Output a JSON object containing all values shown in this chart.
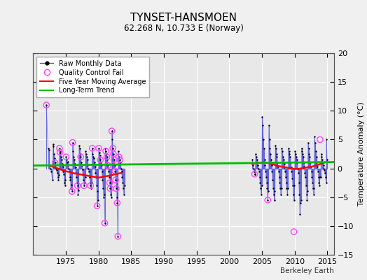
{
  "title": "TYNSET-HANSMOEN",
  "subtitle": "62.268 N, 10.733 E (Norway)",
  "ylabel": "Temperature Anomaly (°C)",
  "xlabel_credit": "Berkeley Earth",
  "xlim": [
    1970,
    2016
  ],
  "ylim": [
    -15,
    20
  ],
  "yticks": [
    -15,
    -10,
    -5,
    0,
    5,
    10,
    15,
    20
  ],
  "xticks": [
    1975,
    1980,
    1985,
    1990,
    1995,
    2000,
    2005,
    2010,
    2015
  ],
  "plot_bg_color": "#e8e8e8",
  "outer_bg_color": "#f0f0f0",
  "grid_color": "#ffffff",
  "raw_color": "#5555dd",
  "dot_color": "#000000",
  "moving_avg_color": "#ff0000",
  "trend_color": "#00bb00",
  "qc_fail_color": "#ff44ff",
  "data_gap_start": 1984.0,
  "data_gap_end": 2003.5,
  "raw_monthly": [
    [
      1972.04,
      11.0
    ],
    [
      1972.29,
      3.5
    ],
    [
      1972.46,
      3.2
    ],
    [
      1972.54,
      0.5
    ],
    [
      1972.62,
      0.0
    ],
    [
      1972.79,
      -0.5
    ],
    [
      1972.96,
      -2.0
    ],
    [
      1973.04,
      4.2
    ],
    [
      1973.12,
      3.8
    ],
    [
      1973.21,
      2.5
    ],
    [
      1973.29,
      1.8
    ],
    [
      1973.37,
      1.0
    ],
    [
      1973.46,
      0.5
    ],
    [
      1973.54,
      0.0
    ],
    [
      1973.62,
      -0.3
    ],
    [
      1973.71,
      -0.8
    ],
    [
      1973.79,
      -1.5
    ],
    [
      1973.87,
      -2.0
    ],
    [
      1973.96,
      -1.2
    ],
    [
      1974.04,
      3.5
    ],
    [
      1974.12,
      2.8
    ],
    [
      1974.21,
      3.0
    ],
    [
      1974.29,
      2.0
    ],
    [
      1974.37,
      1.5
    ],
    [
      1974.46,
      0.8
    ],
    [
      1974.54,
      0.3
    ],
    [
      1974.62,
      -0.5
    ],
    [
      1974.71,
      -1.0
    ],
    [
      1974.79,
      -2.5
    ],
    [
      1974.87,
      -3.0
    ],
    [
      1974.96,
      -2.0
    ],
    [
      1975.04,
      2.0
    ],
    [
      1975.12,
      1.5
    ],
    [
      1975.21,
      1.0
    ],
    [
      1975.29,
      1.2
    ],
    [
      1975.37,
      0.5
    ],
    [
      1975.46,
      0.0
    ],
    [
      1975.54,
      -0.5
    ],
    [
      1975.62,
      -1.5
    ],
    [
      1975.71,
      -2.0
    ],
    [
      1975.79,
      -3.5
    ],
    [
      1975.87,
      -2.8
    ],
    [
      1975.96,
      -4.0
    ],
    [
      1976.04,
      4.5
    ],
    [
      1976.12,
      3.0
    ],
    [
      1976.21,
      2.0
    ],
    [
      1976.29,
      1.5
    ],
    [
      1976.37,
      0.8
    ],
    [
      1976.46,
      0.2
    ],
    [
      1976.54,
      -0.8
    ],
    [
      1976.62,
      -1.5
    ],
    [
      1976.71,
      -2.5
    ],
    [
      1976.79,
      -3.0
    ],
    [
      1976.87,
      -4.5
    ],
    [
      1976.96,
      -3.8
    ],
    [
      1977.04,
      4.0
    ],
    [
      1977.12,
      3.5
    ],
    [
      1977.21,
      2.5
    ],
    [
      1977.29,
      2.0
    ],
    [
      1977.37,
      1.0
    ],
    [
      1977.46,
      0.5
    ],
    [
      1977.54,
      -0.2
    ],
    [
      1977.62,
      -1.0
    ],
    [
      1977.71,
      -2.0
    ],
    [
      1977.79,
      -3.0
    ],
    [
      1977.87,
      -2.5
    ],
    [
      1977.96,
      -1.5
    ],
    [
      1978.04,
      3.0
    ],
    [
      1978.12,
      2.5
    ],
    [
      1978.21,
      2.0
    ],
    [
      1978.29,
      1.5
    ],
    [
      1978.37,
      0.5
    ],
    [
      1978.46,
      0.0
    ],
    [
      1978.54,
      -0.5
    ],
    [
      1978.62,
      -1.5
    ],
    [
      1978.71,
      -2.5
    ],
    [
      1978.79,
      -3.0
    ],
    [
      1978.87,
      -3.5
    ],
    [
      1978.96,
      -2.5
    ],
    [
      1979.04,
      3.5
    ],
    [
      1979.12,
      2.5
    ],
    [
      1979.21,
      2.0
    ],
    [
      1979.29,
      1.8
    ],
    [
      1979.37,
      1.0
    ],
    [
      1979.46,
      0.3
    ],
    [
      1979.54,
      -0.8
    ],
    [
      1979.62,
      -1.5
    ],
    [
      1979.71,
      -3.0
    ],
    [
      1979.79,
      -6.5
    ],
    [
      1979.87,
      -4.0
    ],
    [
      1979.96,
      -5.5
    ],
    [
      1980.04,
      3.5
    ],
    [
      1980.12,
      2.8
    ],
    [
      1980.21,
      2.2
    ],
    [
      1980.29,
      1.5
    ],
    [
      1980.37,
      1.0
    ],
    [
      1980.46,
      0.5
    ],
    [
      1980.54,
      -0.5
    ],
    [
      1980.62,
      -2.0
    ],
    [
      1980.71,
      -3.5
    ],
    [
      1980.79,
      -5.0
    ],
    [
      1980.87,
      -4.5
    ],
    [
      1980.96,
      -9.5
    ],
    [
      1981.04,
      3.5
    ],
    [
      1981.12,
      3.0
    ],
    [
      1981.21,
      2.5
    ],
    [
      1981.29,
      2.0
    ],
    [
      1981.37,
      1.5
    ],
    [
      1981.46,
      0.5
    ],
    [
      1981.54,
      -0.5
    ],
    [
      1981.62,
      -1.5
    ],
    [
      1981.71,
      -2.5
    ],
    [
      1981.79,
      -3.5
    ],
    [
      1981.87,
      -4.5
    ],
    [
      1981.96,
      -5.0
    ],
    [
      1982.04,
      6.5
    ],
    [
      1982.12,
      5.0
    ],
    [
      1982.21,
      3.5
    ],
    [
      1982.29,
      2.5
    ],
    [
      1982.37,
      1.5
    ],
    [
      1982.46,
      0.5
    ],
    [
      1982.54,
      -0.5
    ],
    [
      1982.62,
      -2.0
    ],
    [
      1982.71,
      -3.5
    ],
    [
      1982.79,
      -5.0
    ],
    [
      1982.87,
      -6.0
    ],
    [
      1982.96,
      -11.8
    ],
    [
      1983.04,
      3.0
    ],
    [
      1983.12,
      2.0
    ],
    [
      1983.21,
      1.5
    ],
    [
      1983.29,
      1.5
    ],
    [
      1983.37,
      1.0
    ],
    [
      1983.46,
      0.0
    ],
    [
      1983.54,
      -0.5
    ],
    [
      1983.62,
      -1.5
    ],
    [
      1983.71,
      -2.5
    ],
    [
      1983.79,
      -3.5
    ],
    [
      1983.87,
      -4.5
    ],
    [
      1983.96,
      -3.0
    ],
    [
      2003.54,
      1.5
    ],
    [
      2003.62,
      0.5
    ],
    [
      2003.71,
      0.0
    ],
    [
      2003.79,
      -0.5
    ],
    [
      2003.87,
      -1.0
    ],
    [
      2003.96,
      -1.0
    ],
    [
      2004.04,
      2.5
    ],
    [
      2004.12,
      2.0
    ],
    [
      2004.21,
      1.5
    ],
    [
      2004.29,
      1.0
    ],
    [
      2004.37,
      0.5
    ],
    [
      2004.46,
      0.0
    ],
    [
      2004.54,
      -0.5
    ],
    [
      2004.62,
      -1.5
    ],
    [
      2004.71,
      -2.5
    ],
    [
      2004.79,
      -3.5
    ],
    [
      2004.87,
      -4.5
    ],
    [
      2004.96,
      -3.0
    ],
    [
      2005.04,
      9.0
    ],
    [
      2005.12,
      7.5
    ],
    [
      2005.21,
      5.0
    ],
    [
      2005.29,
      3.5
    ],
    [
      2005.37,
      1.5
    ],
    [
      2005.46,
      0.5
    ],
    [
      2005.54,
      -0.5
    ],
    [
      2005.62,
      -1.5
    ],
    [
      2005.71,
      -2.5
    ],
    [
      2005.79,
      -3.5
    ],
    [
      2005.87,
      -5.5
    ],
    [
      2005.96,
      -4.0
    ],
    [
      2006.04,
      7.5
    ],
    [
      2006.12,
      5.0
    ],
    [
      2006.21,
      3.5
    ],
    [
      2006.29,
      2.5
    ],
    [
      2006.37,
      1.5
    ],
    [
      2006.46,
      0.5
    ],
    [
      2006.54,
      -0.5
    ],
    [
      2006.62,
      -2.0
    ],
    [
      2006.71,
      -3.5
    ],
    [
      2006.79,
      -4.5
    ],
    [
      2006.87,
      -5.5
    ],
    [
      2006.96,
      -4.0
    ],
    [
      2007.04,
      4.0
    ],
    [
      2007.12,
      3.5
    ],
    [
      2007.21,
      2.5
    ],
    [
      2007.29,
      2.0
    ],
    [
      2007.37,
      1.0
    ],
    [
      2007.46,
      0.3
    ],
    [
      2007.54,
      -0.5
    ],
    [
      2007.62,
      -1.5
    ],
    [
      2007.71,
      -2.5
    ],
    [
      2007.79,
      -3.5
    ],
    [
      2007.87,
      -4.5
    ],
    [
      2007.96,
      -3.5
    ],
    [
      2008.04,
      3.5
    ],
    [
      2008.12,
      3.0
    ],
    [
      2008.21,
      2.0
    ],
    [
      2008.29,
      1.5
    ],
    [
      2008.37,
      0.8
    ],
    [
      2008.46,
      0.2
    ],
    [
      2008.54,
      -0.5
    ],
    [
      2008.62,
      -1.5
    ],
    [
      2008.71,
      -2.5
    ],
    [
      2008.79,
      -3.5
    ],
    [
      2008.87,
      -4.5
    ],
    [
      2008.96,
      -3.5
    ],
    [
      2009.04,
      3.5
    ],
    [
      2009.12,
      3.0
    ],
    [
      2009.21,
      2.5
    ],
    [
      2009.29,
      2.0
    ],
    [
      2009.37,
      1.0
    ],
    [
      2009.46,
      0.2
    ],
    [
      2009.54,
      -0.5
    ],
    [
      2009.62,
      -1.8
    ],
    [
      2009.71,
      -3.0
    ],
    [
      2009.79,
      -4.5
    ],
    [
      2009.87,
      -5.5
    ],
    [
      2009.96,
      -3.0
    ],
    [
      2010.04,
      3.0
    ],
    [
      2010.12,
      2.5
    ],
    [
      2010.21,
      2.0
    ],
    [
      2010.29,
      1.5
    ],
    [
      2010.37,
      1.0
    ],
    [
      2010.46,
      0.0
    ],
    [
      2010.54,
      -0.8
    ],
    [
      2010.62,
      -2.5
    ],
    [
      2010.71,
      -4.5
    ],
    [
      2010.79,
      -8.0
    ],
    [
      2010.87,
      -6.0
    ],
    [
      2010.96,
      -5.5
    ],
    [
      2011.04,
      3.5
    ],
    [
      2011.12,
      3.0
    ],
    [
      2011.21,
      2.5
    ],
    [
      2011.29,
      2.0
    ],
    [
      2011.37,
      1.0
    ],
    [
      2011.46,
      0.3
    ],
    [
      2011.54,
      -0.8
    ],
    [
      2011.62,
      -1.5
    ],
    [
      2011.71,
      -3.0
    ],
    [
      2011.79,
      -4.5
    ],
    [
      2011.87,
      -5.5
    ],
    [
      2011.96,
      -4.0
    ],
    [
      2012.04,
      4.5
    ],
    [
      2012.12,
      3.5
    ],
    [
      2012.21,
      2.5
    ],
    [
      2012.29,
      2.0
    ],
    [
      2012.37,
      1.0
    ],
    [
      2012.46,
      0.3
    ],
    [
      2012.54,
      -0.5
    ],
    [
      2012.62,
      -1.5
    ],
    [
      2012.71,
      -2.5
    ],
    [
      2012.79,
      -3.5
    ],
    [
      2012.87,
      -4.5
    ],
    [
      2012.96,
      -3.5
    ],
    [
      2013.04,
      5.5
    ],
    [
      2013.12,
      4.5
    ],
    [
      2013.21,
      3.0
    ],
    [
      2013.29,
      2.0
    ],
    [
      2013.37,
      1.0
    ],
    [
      2013.46,
      0.3
    ],
    [
      2013.54,
      -0.5
    ],
    [
      2013.62,
      -1.5
    ],
    [
      2013.71,
      -2.5
    ],
    [
      2013.79,
      -3.0
    ],
    [
      2013.87,
      -1.5
    ],
    [
      2013.96,
      -1.5
    ],
    [
      2014.04,
      2.5
    ],
    [
      2014.12,
      2.0
    ],
    [
      2014.21,
      1.5
    ],
    [
      2014.29,
      1.0
    ],
    [
      2014.37,
      0.5
    ],
    [
      2014.46,
      0.0
    ],
    [
      2014.54,
      -0.3
    ],
    [
      2014.62,
      -0.8
    ],
    [
      2014.71,
      -1.5
    ],
    [
      2014.79,
      -2.5
    ],
    [
      2014.87,
      5.0
    ],
    [
      2014.96,
      1.5
    ]
  ],
  "qc_fail_points": [
    [
      1972.04,
      11.0
    ],
    [
      1973.37,
      1.0
    ],
    [
      1974.04,
      3.5
    ],
    [
      1974.12,
      2.8
    ],
    [
      1975.04,
      2.0
    ],
    [
      1975.96,
      -4.0
    ],
    [
      1976.04,
      4.5
    ],
    [
      1976.79,
      -3.0
    ],
    [
      1977.29,
      2.0
    ],
    [
      1977.79,
      -3.0
    ],
    [
      1978.79,
      -3.0
    ],
    [
      1979.04,
      3.5
    ],
    [
      1979.79,
      -6.5
    ],
    [
      1980.04,
      3.5
    ],
    [
      1980.29,
      1.5
    ],
    [
      1980.96,
      -9.5
    ],
    [
      1981.12,
      3.0
    ],
    [
      1981.29,
      2.0
    ],
    [
      1981.46,
      0.5
    ],
    [
      1981.71,
      -2.5
    ],
    [
      1981.79,
      -3.5
    ],
    [
      1982.04,
      6.5
    ],
    [
      1982.21,
      3.5
    ],
    [
      1982.29,
      2.5
    ],
    [
      1982.37,
      1.5
    ],
    [
      1982.54,
      -0.5
    ],
    [
      1982.62,
      -2.0
    ],
    [
      1982.71,
      -3.5
    ],
    [
      1982.87,
      -6.0
    ],
    [
      1982.96,
      -11.8
    ],
    [
      1983.12,
      2.0
    ],
    [
      1983.29,
      1.5
    ],
    [
      2003.87,
      -1.0
    ],
    [
      2005.87,
      -5.5
    ],
    [
      2009.87,
      -11.0
    ],
    [
      2013.87,
      5.0
    ]
  ],
  "moving_avg": [
    [
      1972.5,
      0.5
    ],
    [
      1973.0,
      0.3
    ],
    [
      1973.5,
      0.1
    ],
    [
      1974.0,
      -0.1
    ],
    [
      1974.5,
      -0.3
    ],
    [
      1975.0,
      -0.5
    ],
    [
      1975.5,
      -0.6
    ],
    [
      1976.0,
      -0.8
    ],
    [
      1976.5,
      -0.9
    ],
    [
      1977.0,
      -1.0
    ],
    [
      1977.5,
      -1.1
    ],
    [
      1978.0,
      -1.2
    ],
    [
      1978.5,
      -1.3
    ],
    [
      1979.0,
      -1.4
    ],
    [
      1979.5,
      -1.5
    ],
    [
      1980.0,
      -1.6
    ],
    [
      1980.5,
      -1.5
    ],
    [
      1981.0,
      -1.4
    ],
    [
      1981.5,
      -1.3
    ],
    [
      1982.0,
      -1.2
    ],
    [
      1982.5,
      -1.0
    ],
    [
      1983.0,
      -0.9
    ],
    [
      1983.5,
      -0.8
    ],
    [
      2003.5,
      0.8
    ],
    [
      2004.0,
      0.9
    ],
    [
      2004.5,
      1.0
    ],
    [
      2005.0,
      1.0
    ],
    [
      2005.5,
      1.0
    ],
    [
      2006.0,
      0.9
    ],
    [
      2006.5,
      0.8
    ],
    [
      2007.0,
      0.6
    ],
    [
      2007.5,
      0.4
    ],
    [
      2008.0,
      0.3
    ],
    [
      2008.5,
      0.2
    ],
    [
      2009.0,
      0.1
    ],
    [
      2009.5,
      0.0
    ],
    [
      2010.0,
      -0.1
    ],
    [
      2010.5,
      -0.1
    ],
    [
      2011.0,
      0.0
    ],
    [
      2011.5,
      0.1
    ],
    [
      2012.0,
      0.2
    ],
    [
      2012.5,
      0.3
    ],
    [
      2013.0,
      0.4
    ],
    [
      2013.5,
      0.6
    ],
    [
      2014.0,
      0.8
    ],
    [
      2014.5,
      1.0
    ]
  ],
  "trend_line": [
    [
      1970,
      0.5
    ],
    [
      2016,
      1.1
    ]
  ]
}
